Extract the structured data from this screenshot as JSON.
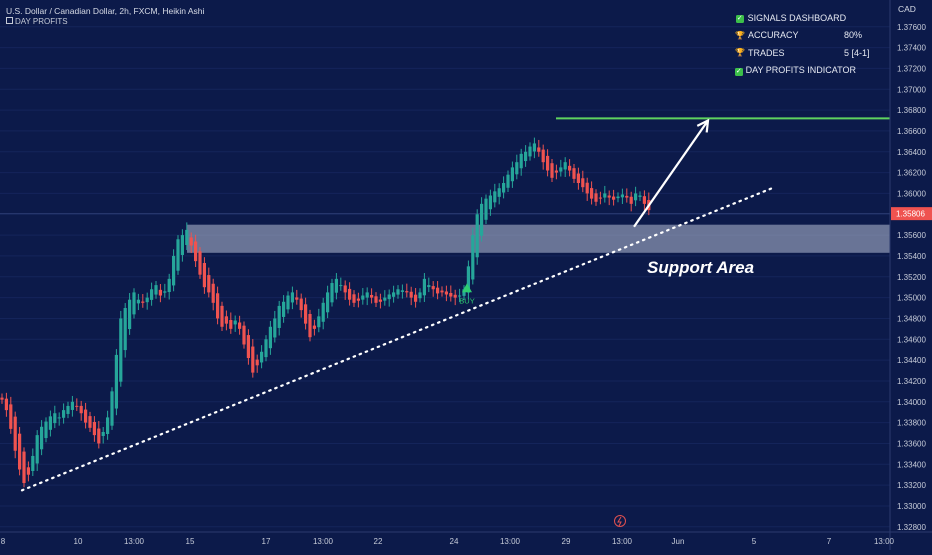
{
  "header": {
    "title": "U.S. Dollar / Canadian Dollar, 2h, FXCM, Heikin Ashi",
    "indicator": "DAY PROFITS",
    "indicator_icon": "square-icon"
  },
  "dashboard": {
    "rows": [
      {
        "icon": "check-icon",
        "label": "SIGNALS DASHBOARD",
        "value": ""
      },
      {
        "icon": "trophy-icon",
        "label": "ACCURACY",
        "value": "80%"
      },
      {
        "icon": "trophy-icon",
        "label": "TRADES",
        "value": "5 [4-1]"
      },
      {
        "icon": "check-icon",
        "label": "DAY PROFITS INDICATOR",
        "value": ""
      }
    ]
  },
  "annotations": {
    "support_label": "Support Area",
    "buy_label": "BUY",
    "current_price": "1.35806"
  },
  "colors": {
    "background": "#0c1a4a",
    "up": "#26a69a",
    "down": "#ef5350",
    "target_line": "#5fd35f",
    "support_zone": "#b7bfd6",
    "price_label_bg": "#ef5350"
  },
  "chart_data": {
    "type": "candlestick",
    "title": "U.S. Dollar / Canadian Dollar, 2h, FXCM, Heikin Ashi",
    "y_axis_unit": "CAD",
    "ylim": [
      1.3275,
      1.3778
    ],
    "y_ticks": [
      "1.37600",
      "1.37400",
      "1.37200",
      "1.37000",
      "1.36800",
      "1.36600",
      "1.36400",
      "1.36200",
      "1.36000",
      "1.35800",
      "1.35600",
      "1.35400",
      "1.35200",
      "1.35000",
      "1.34800",
      "1.34600",
      "1.34400",
      "1.34200",
      "1.34000",
      "1.33800",
      "1.33600",
      "1.33400",
      "1.33200",
      "1.33000",
      "1.32800"
    ],
    "x_ticks": [
      "8",
      "10",
      "13:00",
      "15",
      "17",
      "13:00",
      "22",
      "24",
      "13:00",
      "29",
      "13:00",
      "Jun",
      "5",
      "7",
      "13:00"
    ],
    "closes": [
      1.3402,
      1.3392,
      1.3374,
      1.3353,
      1.3335,
      1.3322,
      1.333,
      1.3348,
      1.3368,
      1.3376,
      1.3381,
      1.3386,
      1.3389,
      1.3385,
      1.3392,
      1.3396,
      1.34,
      1.3396,
      1.3389,
      1.338,
      1.3375,
      1.3368,
      1.336,
      1.3371,
      1.3385,
      1.341,
      1.3445,
      1.348,
      1.349,
      1.3498,
      1.3505,
      1.3498,
      1.3495,
      1.35,
      1.3508,
      1.3512,
      1.3502,
      1.3506,
      1.3518,
      1.354,
      1.3556,
      1.356,
      1.3565,
      1.355,
      1.3535,
      1.3522,
      1.351,
      1.3505,
      1.3495,
      1.348,
      1.3472,
      1.3475,
      1.347,
      1.3478,
      1.347,
      1.3455,
      1.3442,
      1.3428,
      1.3435,
      1.3448,
      1.346,
      1.3472,
      1.348,
      1.3492,
      1.3496,
      1.3502,
      1.3505,
      1.3498,
      1.3488,
      1.3475,
      1.3462,
      1.347,
      1.3482,
      1.3495,
      1.3505,
      1.3514,
      1.3518,
      1.3512,
      1.3505,
      1.3498,
      1.3495,
      1.3497,
      1.3502,
      1.3505,
      1.35,
      1.3495,
      1.3496,
      1.35,
      1.3503,
      1.3505,
      1.3508,
      1.3507,
      1.3505,
      1.35,
      1.3496,
      1.3505,
      1.3518,
      1.3512,
      1.3508,
      1.3504,
      1.3505,
      1.3503,
      1.3501,
      1.35,
      1.3502,
      1.3508,
      1.353,
      1.356,
      1.358,
      1.359,
      1.3595,
      1.3598,
      1.3602,
      1.3605,
      1.361,
      1.3618,
      1.3625,
      1.363,
      1.3638,
      1.364,
      1.3645,
      1.3648,
      1.364,
      1.363,
      1.3622,
      1.3615,
      1.362,
      1.3625,
      1.363,
      1.3622,
      1.3614,
      1.361,
      1.3606,
      1.36,
      1.3595,
      1.3592,
      1.3596,
      1.36,
      1.3596,
      1.3594,
      1.3597,
      1.3599,
      1.3596,
      1.359,
      1.36,
      1.3598,
      1.359,
      1.3584
    ],
    "support_zone": {
      "top": 1.357,
      "bottom": 1.3543
    },
    "target_level": 1.3672,
    "current_price": 1.35806,
    "trendline": {
      "start": [
        0,
        1.3315
      ],
      "end": [
        140,
        1.3605
      ]
    },
    "buy_signal_index": 105,
    "buy_signal_price": 1.3508,
    "arrow": {
      "from": [
        119,
        1.3568
      ],
      "to": [
        132,
        1.367
      ]
    }
  }
}
